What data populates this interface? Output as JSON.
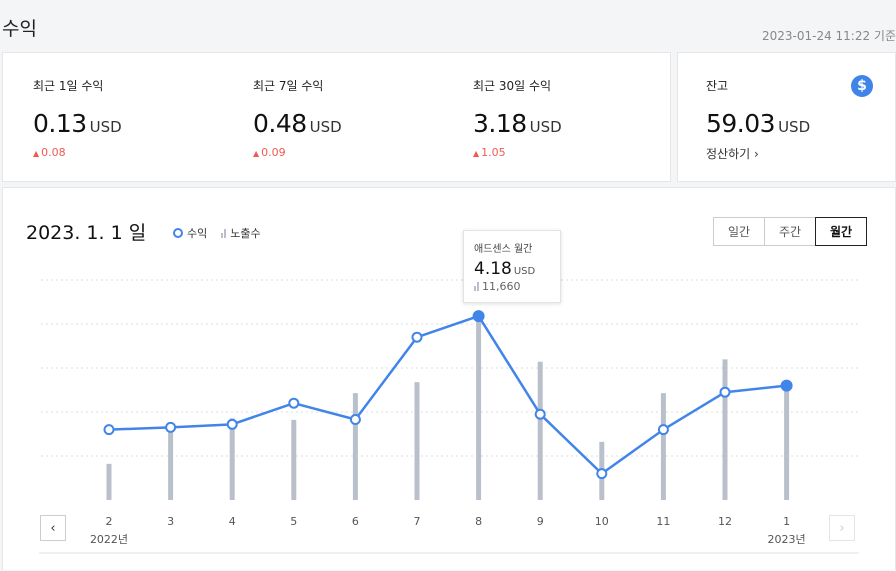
{
  "header": {
    "title": "수익",
    "timestamp": "2023-01-24 11:22 기준"
  },
  "stats": [
    {
      "label": "최근 1일 수익",
      "value": "0.13",
      "unit": "USD",
      "change": "0.08"
    },
    {
      "label": "최근 7일 수익",
      "value": "0.48",
      "unit": "USD",
      "change": "0.09"
    },
    {
      "label": "최근 30일 수익",
      "value": "3.18",
      "unit": "USD",
      "change": "1.05"
    }
  ],
  "balance": {
    "label": "잔고",
    "value": "59.03",
    "unit": "USD",
    "settle_label": "정산하기",
    "settle_chevron": "›",
    "icon": "dollar-icon",
    "icon_glyph": "$"
  },
  "chart_header": {
    "date": "2023. 1. 1",
    "date_suffix": "일"
  },
  "legend": {
    "revenue": "수익",
    "impressions": "노출수"
  },
  "period": {
    "daily": "일간",
    "weekly": "주간",
    "monthly": "월간",
    "active": "monthly"
  },
  "tooltip": {
    "title": "애드센스 월간",
    "value": "4.18",
    "unit": "USD",
    "impressions": "11,660"
  },
  "nav": {
    "prev": "‹",
    "next": "›"
  },
  "colors": {
    "line": "#4285e8",
    "bar": "#b9c0cb",
    "up": "#f05a52"
  },
  "chart_data": {
    "type": "line",
    "categories": [
      "2",
      "3",
      "4",
      "5",
      "6",
      "7",
      "8",
      "9",
      "10",
      "11",
      "12",
      "1"
    ],
    "year_labels": [
      {
        "index": 0,
        "text": "2022년"
      },
      {
        "index": 11,
        "text": "2023년"
      }
    ],
    "series": [
      {
        "name": "수익",
        "type": "line",
        "values": [
          1.6,
          1.65,
          1.72,
          2.2,
          1.83,
          3.7,
          4.18,
          1.95,
          0.6,
          1.6,
          2.45,
          2.6
        ]
      },
      {
        "name": "노출수",
        "type": "bar",
        "values": [
          2300,
          4300,
          5200,
          5100,
          6800,
          7500,
          11660,
          8800,
          3700,
          6800,
          8950,
          7150
        ]
      }
    ],
    "selected_index": 6,
    "grid": true
  }
}
